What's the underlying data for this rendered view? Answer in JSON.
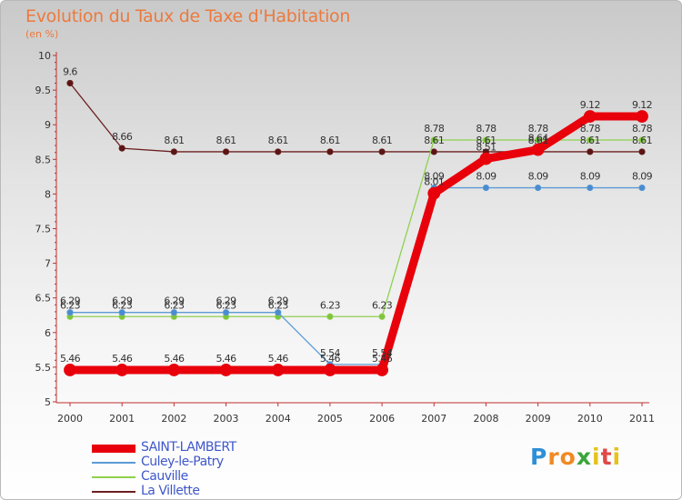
{
  "chart_data": {
    "type": "line",
    "title": "Evolution du Taux de Taxe d'Habitation",
    "subtitle": "(en %)",
    "xlabel": "",
    "ylabel": "",
    "categories": [
      "2000",
      "2001",
      "2002",
      "2003",
      "2004",
      "2005",
      "2006",
      "2007",
      "2008",
      "2009",
      "2010",
      "2011"
    ],
    "ylim": [
      5,
      10
    ],
    "yticks": [
      "5",
      "5.5",
      "6",
      "6.5",
      "7",
      "7.5",
      "8",
      "8.5",
      "9",
      "9.5",
      "10"
    ],
    "grid": false,
    "legend_position": "bottom-left",
    "series": [
      {
        "name": "SAINT-LAMBERT",
        "color": "#e8000b",
        "values": [
          5.46,
          5.46,
          5.46,
          5.46,
          5.46,
          5.46,
          5.46,
          8.01,
          8.51,
          8.64,
          9.12,
          9.12
        ],
        "labels": [
          "5.46",
          "5.46",
          "5.46",
          "5.46",
          "5.46",
          "5.46",
          "5.46",
          "8.01",
          "8.51",
          "8.64",
          "9.12",
          "9.12"
        ]
      },
      {
        "name": "Culey-le-Patry",
        "color": "#5b9bd5",
        "values": [
          6.29,
          6.29,
          6.29,
          6.29,
          6.29,
          5.54,
          5.54,
          8.09,
          8.09,
          8.09,
          8.09,
          8.09
        ],
        "labels": [
          "6.29",
          "6.29",
          "6.29",
          "6.29",
          "6.29",
          "5.54",
          "5.54",
          "8.09",
          "8.09",
          "8.09",
          "8.09",
          "8.09"
        ]
      },
      {
        "name": "Cauville",
        "color": "#8fd14f",
        "values": [
          6.23,
          6.23,
          6.23,
          6.23,
          6.23,
          6.23,
          6.23,
          8.78,
          8.78,
          8.78,
          8.78,
          8.78
        ],
        "labels": [
          "6.23",
          "6.23",
          "6.23",
          "6.23",
          "6.23",
          "6.23",
          "6.23",
          "8.78",
          "8.78",
          "8.78",
          "8.78",
          "8.78"
        ]
      },
      {
        "name": "La Villette",
        "color": "#6b1f1f",
        "values": [
          9.6,
          8.66,
          8.61,
          8.61,
          8.61,
          8.61,
          8.61,
          8.61,
          8.61,
          8.61,
          8.61,
          8.61
        ],
        "labels": [
          "9.6",
          "8.66",
          "8.61",
          "8.61",
          "8.61",
          "8.61",
          "8.61",
          "8.61",
          "8.61",
          "8.61",
          "8.61",
          "8.61"
        ]
      }
    ]
  },
  "logo": {
    "letters": [
      "P",
      "r",
      "o",
      "x",
      "i",
      "t",
      "i"
    ],
    "colors": [
      "#2e8fd6",
      "#f08a24",
      "#f08a24",
      "#3aa63a",
      "#e6c21a",
      "#e04848",
      "#e6c21a"
    ]
  }
}
